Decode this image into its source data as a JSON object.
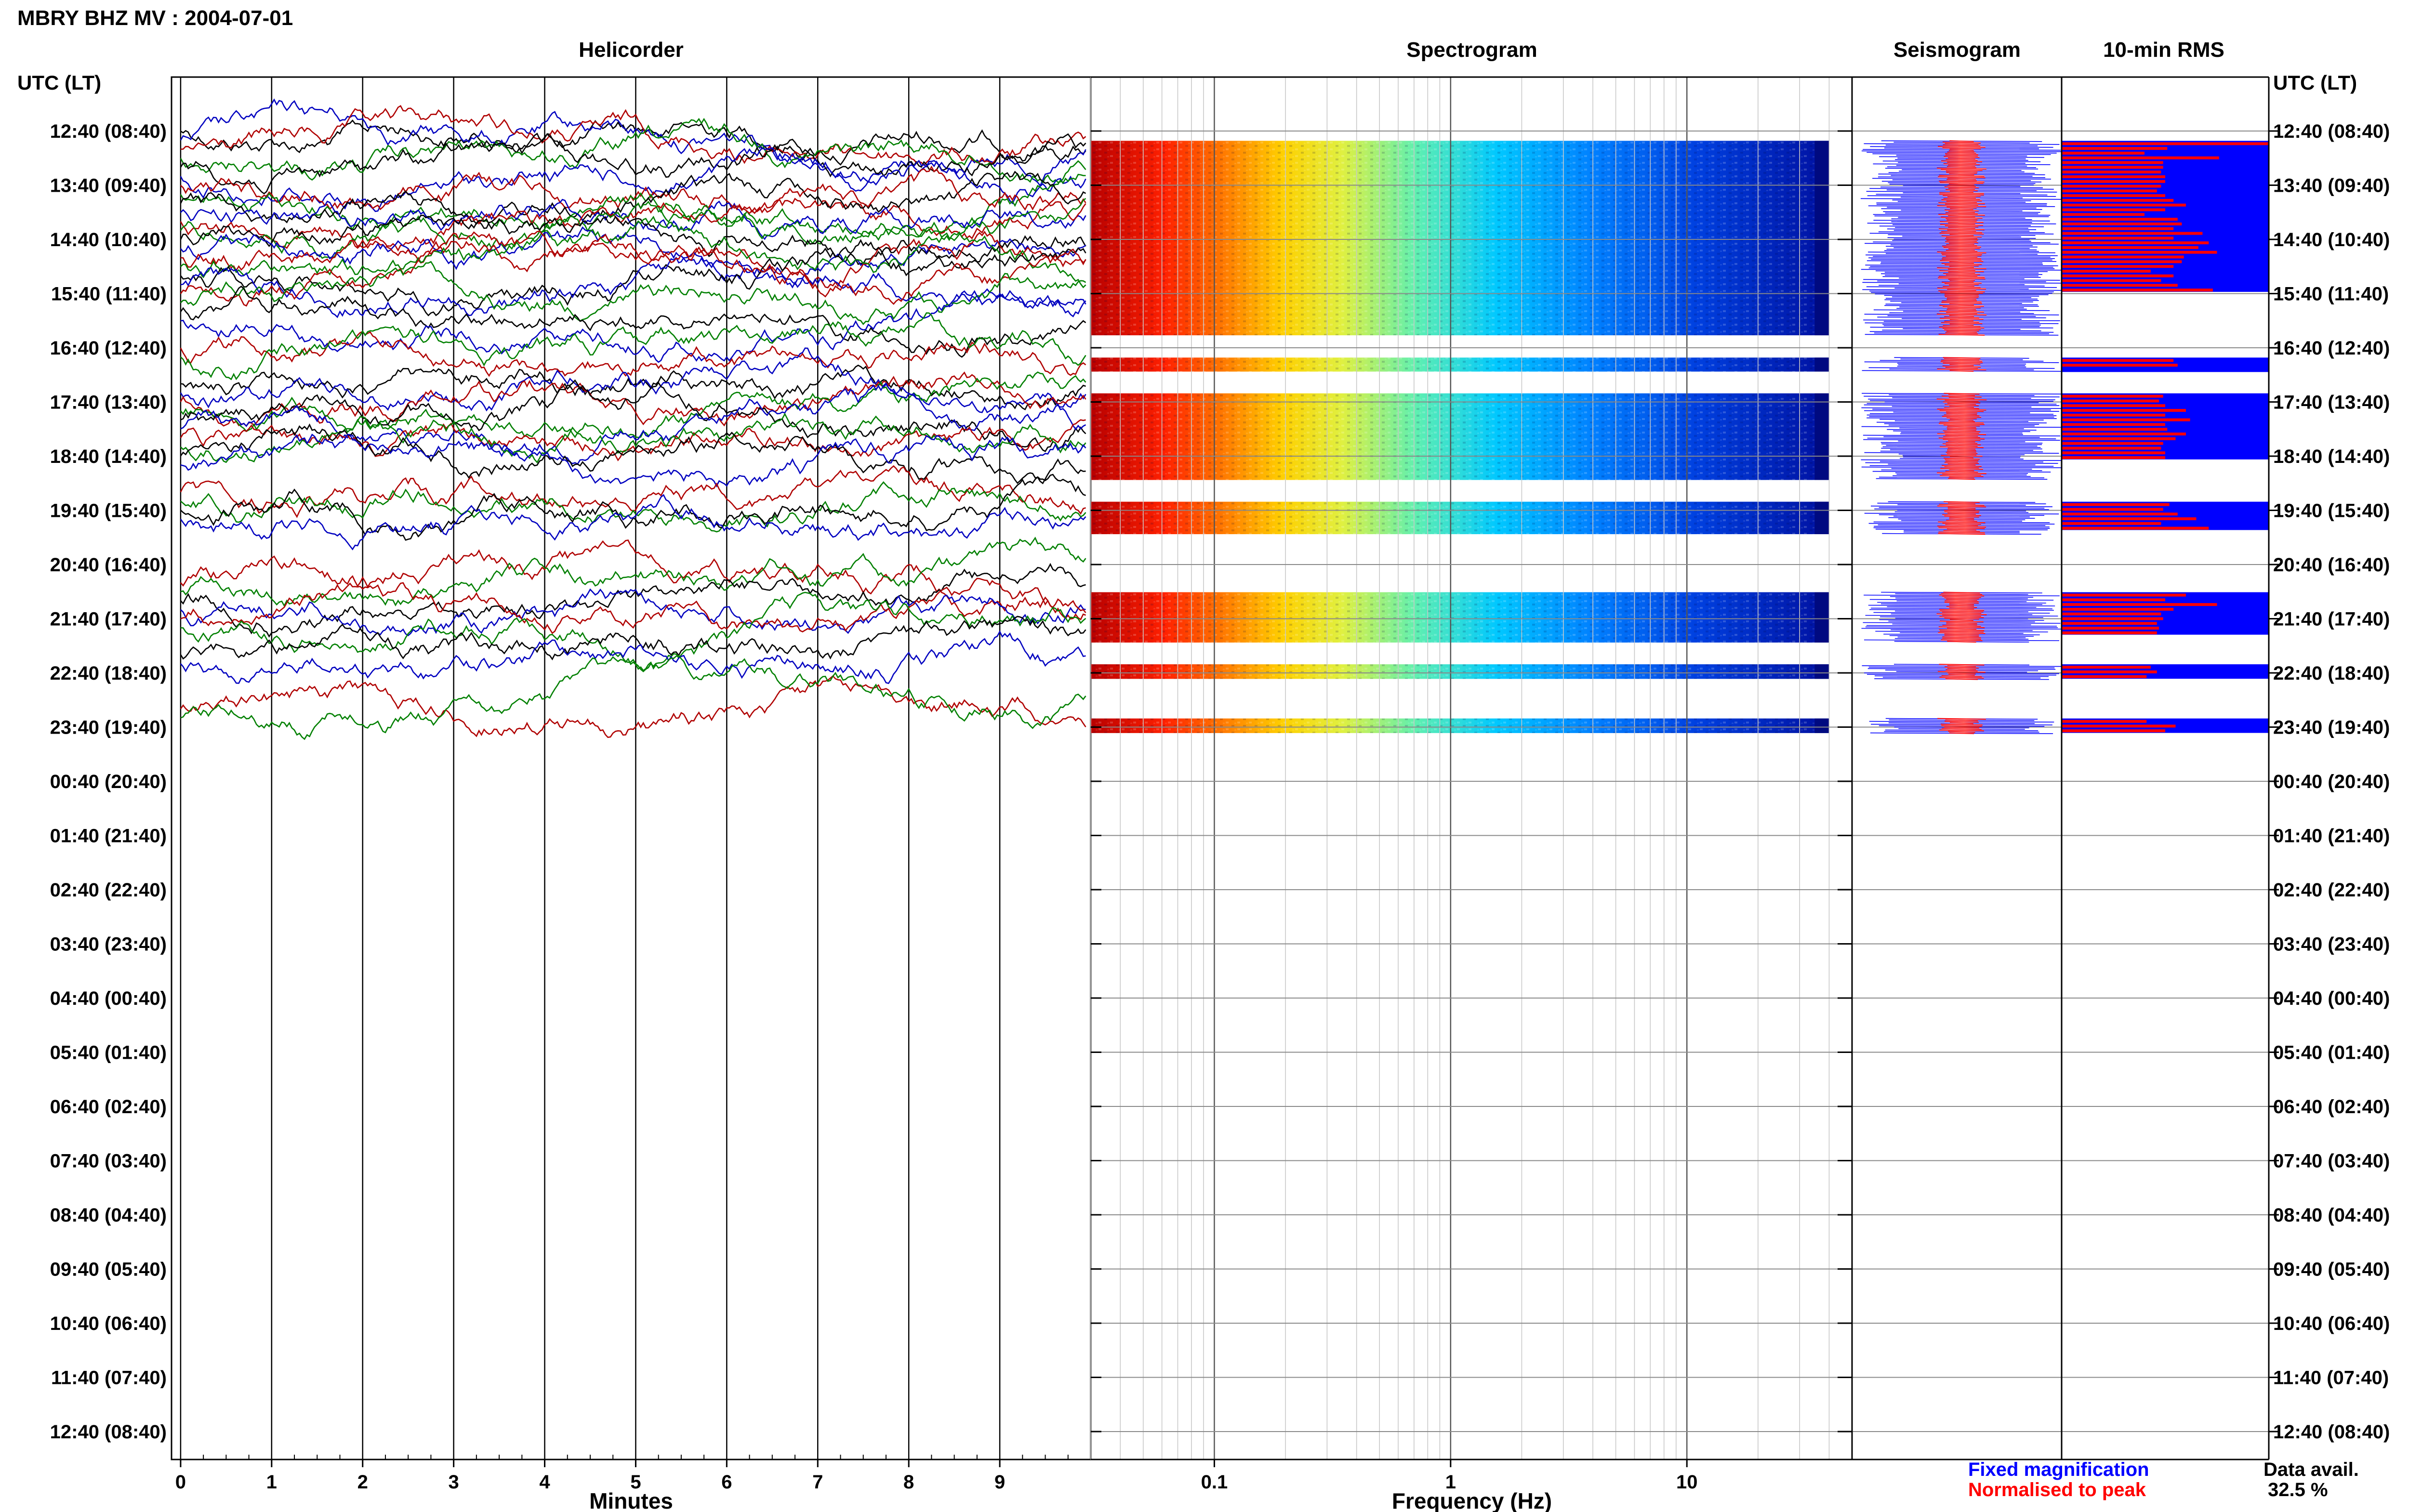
{
  "header": {
    "title": "MBRY BHZ MV : 2004-07-01",
    "time_axis_label": "UTC (LT)"
  },
  "panels": {
    "helicorder": "Helicorder",
    "spectrogram": "Spectrogram",
    "seismogram": "Seismogram",
    "rms": "10-min RMS"
  },
  "row_labels": [
    "12:40 (08:40)",
    "13:40 (09:40)",
    "14:40 (10:40)",
    "15:40 (11:40)",
    "16:40 (12:40)",
    "17:40 (13:40)",
    "18:40 (14:40)",
    "19:40 (15:40)",
    "20:40 (16:40)",
    "21:40 (17:40)",
    "22:40 (18:40)",
    "23:40 (19:40)",
    "00:40 (20:40)",
    "01:40 (21:40)",
    "02:40 (22:40)",
    "03:40 (23:40)",
    "04:40 (00:40)",
    "05:40 (01:40)",
    "06:40 (02:40)",
    "07:40 (03:40)",
    "08:40 (04:40)",
    "09:40 (05:40)",
    "10:40 (06:40)",
    "11:40 (07:40)",
    "12:40 (08:40)"
  ],
  "footer": {
    "fixed_magnification": "Fixed magnification",
    "normalised_to_peak": "Normalised to peak",
    "data_avail_label": "Data avail.",
    "data_avail_value": "32.5 %"
  },
  "colors": {
    "trace_cycle": [
      "#000000",
      "#0000c0",
      "#b00000",
      "#008000"
    ],
    "fixed_magnification": "#0000ff",
    "normalised_to_peak": "#ff0000",
    "rms_background": "#0000ff",
    "rms_bar": "#ff0000"
  },
  "chart_data": [
    {
      "type": "line",
      "panel": "Helicorder",
      "xlabel": "Minutes",
      "x_ticks": [
        0,
        1,
        2,
        3,
        4,
        5,
        6,
        7,
        8,
        9
      ],
      "xlim": [
        -0.1,
        10
      ],
      "ylim": [
        "12:40",
        "12:40"
      ],
      "grid": true,
      "trace_count": 68,
      "data_coverage_hours": [
        [
          12.67,
          16.33
        ],
        [
          16.67,
          17.0
        ],
        [
          17.33,
          19.0
        ],
        [
          19.33,
          20.0
        ],
        [
          21.0,
          22.0
        ],
        [
          22.33,
          22.67
        ],
        [
          23.33,
          23.67
        ]
      ]
    },
    {
      "type": "heatmap",
      "panel": "Spectrogram",
      "xlabel": "Frequency (Hz)",
      "x_scale": "log",
      "x_ticks": [
        0.1,
        1,
        10
      ],
      "xlim": [
        0.03,
        50
      ],
      "colormap": "jet",
      "data_coverage_hours": [
        [
          12.67,
          16.33
        ],
        [
          16.67,
          17.0
        ],
        [
          17.33,
          19.0
        ],
        [
          19.33,
          20.0
        ],
        [
          21.0,
          22.0
        ],
        [
          22.33,
          22.67
        ],
        [
          23.33,
          23.67
        ]
      ]
    },
    {
      "type": "line",
      "panel": "Seismogram",
      "series": [
        {
          "name": "Fixed magnification",
          "color": "#0000ff"
        },
        {
          "name": "Normalised to peak",
          "color": "#ff0000"
        }
      ]
    },
    {
      "type": "bar",
      "panel": "10-min RMS",
      "orientation": "horizontal",
      "segments": [
        {
          "start_hour": 12.67,
          "values": [
            1.0,
            0.51,
            0.4,
            0.76,
            0.49,
            0.49,
            0.48,
            0.5,
            0.5,
            0.48,
            0.46,
            0.5,
            0.54,
            0.6,
            0.5,
            0.4,
            0.56,
            0.58,
            0.54,
            0.68,
            0.54,
            0.71,
            0.66,
            0.75,
            0.59,
            0.58,
            0.54,
            0.43,
            0.54,
            0.48,
            0.56,
            0.73
          ]
        },
        {
          "start_hour": 16.67,
          "values": [
            0.54,
            0.56
          ]
        },
        {
          "start_hour": 17.33,
          "values": [
            0.49,
            0.47,
            0.5,
            0.6,
            0.5,
            0.62,
            0.5,
            0.51,
            0.6,
            0.55,
            0.49,
            0.48,
            0.5,
            0.5
          ]
        },
        {
          "start_hour": 19.33,
          "values": [
            0.52,
            0.49,
            0.56,
            0.65,
            0.48,
            0.71
          ]
        },
        {
          "start_hour": 21.0,
          "values": [
            0.6,
            0.5,
            0.75,
            0.54,
            0.48,
            0.49,
            0.46,
            0.47,
            0.46
          ]
        },
        {
          "start_hour": 22.33,
          "values": [
            0.43,
            0.46,
            0.41
          ]
        },
        {
          "start_hour": 23.33,
          "values": [
            0.41,
            0.55,
            0.5
          ]
        }
      ]
    }
  ]
}
